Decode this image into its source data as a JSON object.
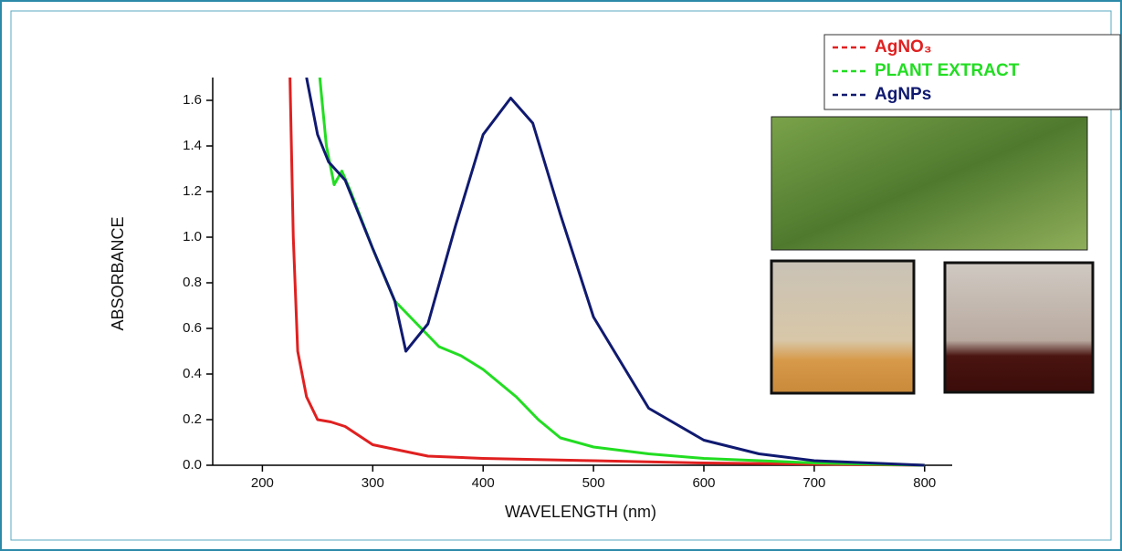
{
  "chart_data": {
    "type": "line",
    "x_label": "WAVELENGTH (nm)",
    "y_label": "ABSORBANCE",
    "xlim": [
      155,
      825
    ],
    "ylim": [
      0,
      1.7
    ],
    "xticks": [
      200,
      300,
      400,
      500,
      600,
      700,
      800
    ],
    "yticks": [
      {
        "value": 0,
        "label": "0.0"
      },
      0.2,
      0.4,
      0.6,
      0.8,
      {
        "value": 1,
        "label": "1.0"
      },
      1.2,
      1.4,
      1.6
    ],
    "legend": "top-right",
    "series": [
      {
        "name": "AgNO₃",
        "color": "#e02020",
        "x": [
          225,
          228,
          232,
          240,
          250,
          262,
          275,
          300,
          350,
          400,
          500,
          600,
          700,
          800
        ],
        "values": [
          1.7,
          1.0,
          0.5,
          0.3,
          0.2,
          0.19,
          0.17,
          0.09,
          0.04,
          0.03,
          0.02,
          0.01,
          0.005,
          0
        ]
      },
      {
        "name": "PLANT EXTRACT",
        "color": "#22dd22",
        "x": [
          252,
          258,
          265,
          272,
          280,
          300,
          320,
          340,
          360,
          380,
          400,
          430,
          450,
          470,
          500,
          550,
          600,
          700,
          800
        ],
        "values": [
          1.7,
          1.4,
          1.23,
          1.29,
          1.2,
          0.95,
          0.72,
          0.62,
          0.52,
          0.48,
          0.42,
          0.3,
          0.2,
          0.12,
          0.08,
          0.05,
          0.03,
          0.01,
          0
        ]
      },
      {
        "name": "AgNPs",
        "color": "#101a70",
        "x": [
          240,
          250,
          260,
          275,
          300,
          320,
          330,
          350,
          375,
          400,
          425,
          445,
          470,
          500,
          550,
          600,
          650,
          700,
          800
        ],
        "values": [
          1.7,
          1.45,
          1.33,
          1.25,
          0.95,
          0.72,
          0.5,
          0.62,
          1.05,
          1.45,
          1.61,
          1.5,
          1.1,
          0.65,
          0.25,
          0.11,
          0.05,
          0.02,
          0
        ]
      }
    ]
  }
}
